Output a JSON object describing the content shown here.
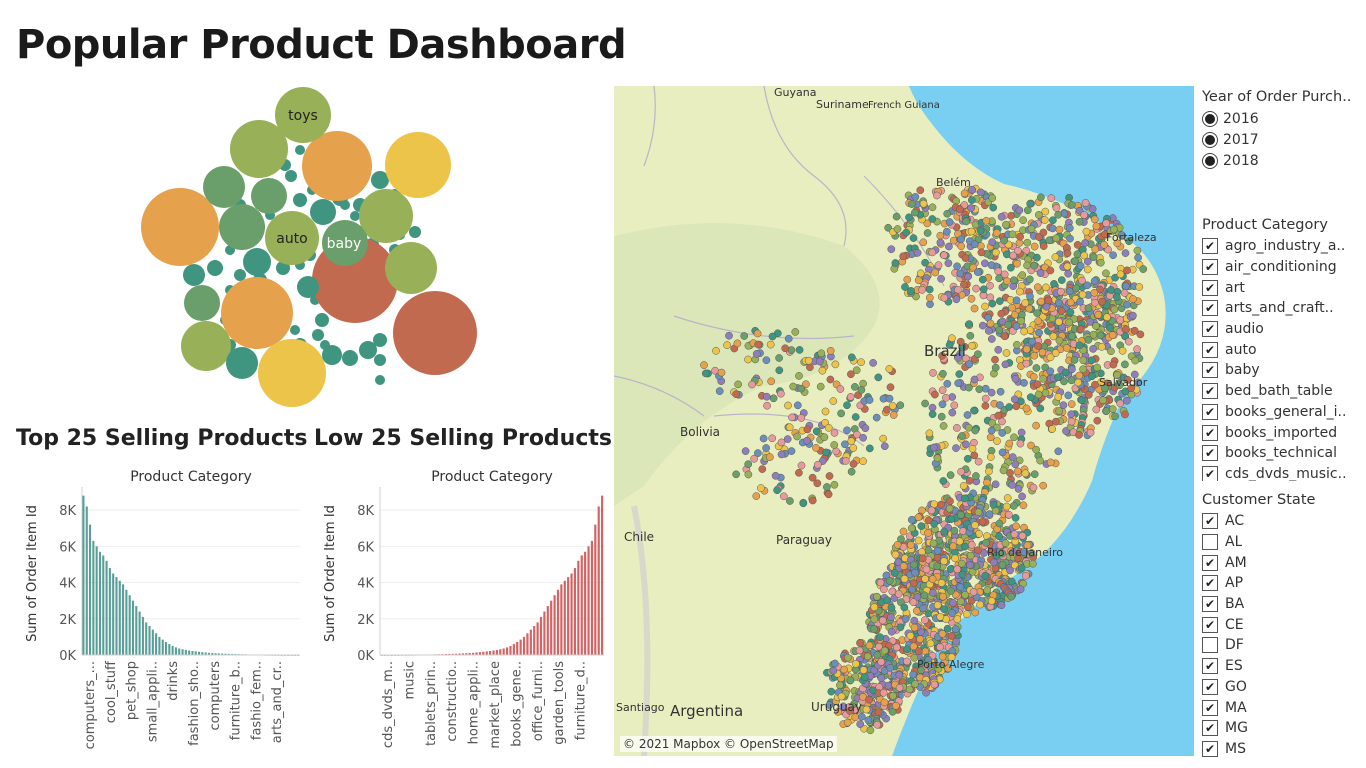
{
  "dashboard": {
    "title": "Popular Product Dashboard"
  },
  "bubble_chart": {
    "labels": [
      "toys",
      "auto",
      "baby"
    ],
    "colors": {
      "orange": "#e5a14c",
      "yellow": "#ecc44a",
      "olive": "#98b057",
      "teal": "#3f9580",
      "green": "#6a9e6a",
      "red": "#c26a4f"
    }
  },
  "top_chart": {
    "heading": "Top 25 Selling Products",
    "color": "#5a9e99"
  },
  "low_chart": {
    "heading": "Low 25 Selling Products",
    "color": "#d16566"
  },
  "chart_data": [
    {
      "type": "bar",
      "title": "Product Category",
      "ylabel": "Sum of Order Item Id",
      "ylim": [
        0,
        9000
      ],
      "yticks": [
        "0K",
        "2K",
        "4K",
        "6K",
        "8K"
      ],
      "tick_labels": [
        "computers_...",
        "cool_stuff",
        "pet_shop",
        "small_appli..",
        "drinks",
        "fashion_sho..",
        "computers",
        "furniture_b..",
        "fashio_fem..",
        "arts_and_cr.."
      ],
      "values": [
        8800,
        8200,
        7200,
        6300,
        6000,
        5700,
        5500,
        5200,
        4800,
        4500,
        4300,
        4100,
        3900,
        3600,
        3300,
        3000,
        2700,
        2400,
        2100,
        1800,
        1600,
        1400,
        1200,
        1000,
        850,
        720,
        600,
        500,
        420,
        360,
        320,
        280,
        250,
        220,
        200,
        180,
        160,
        140,
        120,
        110,
        100,
        90,
        80,
        72,
        65,
        58,
        52,
        46,
        40,
        35,
        30,
        26,
        22,
        18,
        15,
        12,
        10,
        8,
        6,
        5,
        4,
        3,
        2,
        2,
        1,
        1
      ]
    },
    {
      "type": "bar",
      "title": "Product Category",
      "ylabel": "Sum of Order Item Id",
      "ylim": [
        0,
        9000
      ],
      "yticks": [
        "0K",
        "2K",
        "4K",
        "6K",
        "8K"
      ],
      "tick_labels": [
        "cds_dvds_m..",
        "music",
        "tablets_prin..",
        "constructio..",
        "home_appli..",
        "market_place",
        "books_gene..",
        "office_furni..",
        "garden_tools",
        "furniture_d.."
      ],
      "values": [
        1,
        1,
        2,
        2,
        3,
        4,
        5,
        6,
        8,
        10,
        12,
        15,
        18,
        22,
        26,
        30,
        35,
        40,
        46,
        52,
        58,
        65,
        72,
        80,
        90,
        100,
        110,
        120,
        140,
        160,
        180,
        200,
        220,
        250,
        280,
        320,
        360,
        420,
        500,
        600,
        720,
        850,
        1000,
        1200,
        1400,
        1600,
        1800,
        2100,
        2400,
        2700,
        3000,
        3300,
        3600,
        3900,
        4100,
        4300,
        4500,
        4800,
        5200,
        5500,
        5700,
        6000,
        6300,
        7200,
        8200,
        8800
      ]
    }
  ],
  "map": {
    "attribution": "© 2021 Mapbox © OpenStreetMap",
    "place_labels": [
      {
        "key": "guyana",
        "text": "Guyana"
      },
      {
        "key": "suriname",
        "text": "Suriname"
      },
      {
        "key": "french-guiana",
        "text": "French Guiana"
      },
      {
        "key": "belem",
        "text": "Belém"
      },
      {
        "key": "fortaleza",
        "text": "Fortaleza"
      },
      {
        "key": "brazil",
        "text": "Brazil"
      },
      {
        "key": "salvador",
        "text": "Salvador"
      },
      {
        "key": "bolivia",
        "text": "Bolivia"
      },
      {
        "key": "chile",
        "text": "Chile"
      },
      {
        "key": "paraguay",
        "text": "Paraguay"
      },
      {
        "key": "rio",
        "text": "Rio de Janeiro"
      },
      {
        "key": "porto-alegre",
        "text": "Porto Alegre"
      },
      {
        "key": "argentina",
        "text": "Argentina"
      },
      {
        "key": "uruguay",
        "text": "Uruguay"
      },
      {
        "key": "santiago",
        "text": "Santiago"
      }
    ],
    "colors": {
      "land": "#e9eec0",
      "ocean": "#78cff1",
      "forest": "#d2e3b2",
      "points": [
        "#e5a14c",
        "#ecc44a",
        "#98b057",
        "#3f9580",
        "#6a9e6a",
        "#c26a4f",
        "#e69a9a",
        "#8e7fb8",
        "#6b8fb8"
      ]
    }
  },
  "filters": {
    "year": {
      "title": "Year of Order Purch..",
      "options": [
        "2016",
        "2017",
        "2018"
      ]
    },
    "category": {
      "title": "Product Category",
      "items": [
        {
          "label": "agro_industry_a..",
          "checked": true
        },
        {
          "label": "air_conditioning",
          "checked": true
        },
        {
          "label": "art",
          "checked": true
        },
        {
          "label": "arts_and_craft..",
          "checked": true
        },
        {
          "label": "audio",
          "checked": true
        },
        {
          "label": "auto",
          "checked": true
        },
        {
          "label": "baby",
          "checked": true
        },
        {
          "label": "bed_bath_table",
          "checked": true
        },
        {
          "label": "books_general_i..",
          "checked": true
        },
        {
          "label": "books_imported",
          "checked": true
        },
        {
          "label": "books_technical",
          "checked": true
        },
        {
          "label": "cds_dvds_music..",
          "checked": true
        }
      ]
    },
    "state": {
      "title": "Customer State",
      "items": [
        {
          "label": "AC",
          "checked": true
        },
        {
          "label": "AL",
          "checked": false
        },
        {
          "label": "AM",
          "checked": true
        },
        {
          "label": "AP",
          "checked": true
        },
        {
          "label": "BA",
          "checked": true
        },
        {
          "label": "CE",
          "checked": true
        },
        {
          "label": "DF",
          "checked": false
        },
        {
          "label": "ES",
          "checked": true
        },
        {
          "label": "GO",
          "checked": true
        },
        {
          "label": "MA",
          "checked": true
        },
        {
          "label": "MG",
          "checked": true
        },
        {
          "label": "MS",
          "checked": true
        }
      ]
    }
  }
}
